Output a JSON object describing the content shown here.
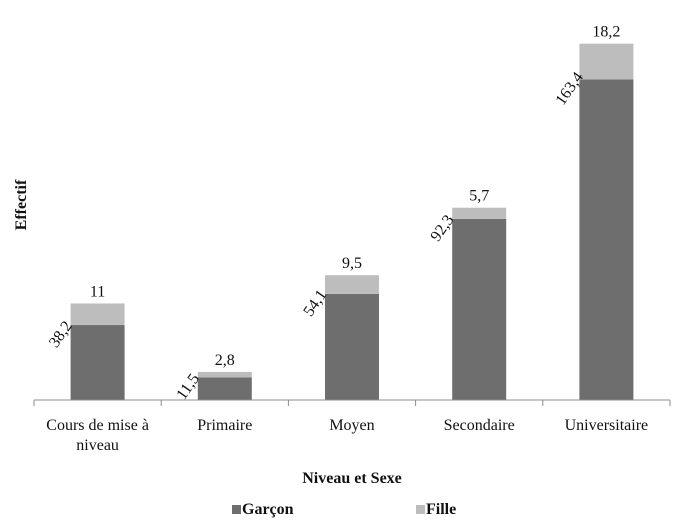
{
  "chart_data": {
    "type": "bar",
    "stacked": true,
    "categories": [
      "Cours de mise à niveau",
      "Primaire",
      "Moyen",
      "Secondaire",
      "Universitaire"
    ],
    "category_lines": [
      [
        "Cours de mise à",
        "niveau"
      ],
      [
        "Primaire"
      ],
      [
        "Moyen"
      ],
      [
        "Secondaire"
      ],
      [
        "Universitaire"
      ]
    ],
    "series": [
      {
        "name": "Garçon",
        "values": [
          38.2,
          11.5,
          54.1,
          92.3,
          163.4
        ],
        "labels": [
          "38,2",
          "11,5",
          "54,1",
          "92,3",
          "163,4"
        ],
        "color": "#6e6e6e"
      },
      {
        "name": "Fille",
        "values": [
          11,
          2.8,
          9.5,
          5.7,
          18.2
        ],
        "labels": [
          "11",
          "2,8",
          "9,5",
          "5,7",
          "18,2"
        ],
        "color": "#bdbdbd"
      }
    ],
    "title": "",
    "xlabel": "Niveau et Sexe",
    "ylabel": "Effectif",
    "ylim": [
      0,
      185
    ],
    "grid": false,
    "legend_position": "bottom"
  }
}
